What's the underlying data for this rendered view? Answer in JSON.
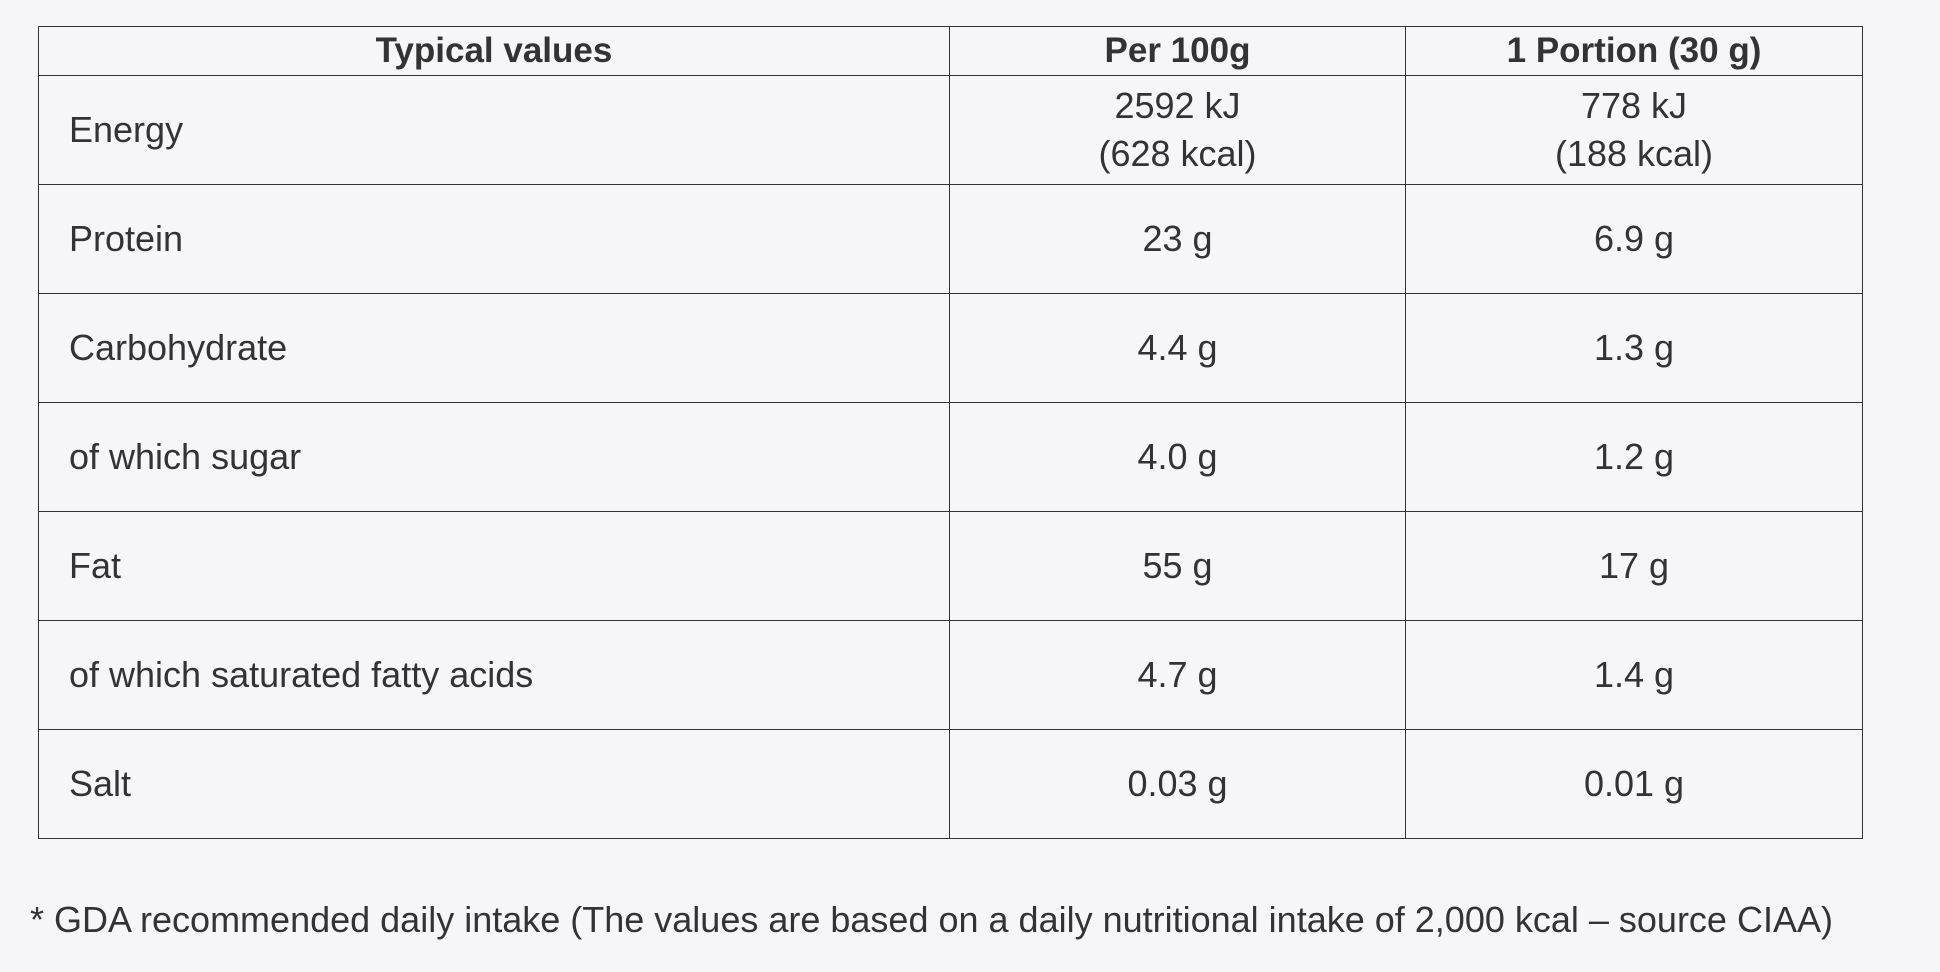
{
  "table": {
    "headers": [
      "Typical values",
      "Per 100g",
      "1 Portion (30 g)"
    ],
    "rows": [
      {
        "name": "Energy",
        "per100": [
          "2592 kJ",
          "(628 kcal)"
        ],
        "portion": [
          "778 kJ",
          "(188 kcal)"
        ]
      },
      {
        "name": "Protein",
        "per100": [
          "23 g"
        ],
        "portion": [
          "6.9 g"
        ]
      },
      {
        "name": "Carbohydrate",
        "per100": [
          "4.4 g"
        ],
        "portion": [
          "1.3 g"
        ]
      },
      {
        "name": "of which sugar",
        "per100": [
          "4.0 g"
        ],
        "portion": [
          "1.2 g"
        ]
      },
      {
        "name": "Fat",
        "per100": [
          "55 g"
        ],
        "portion": [
          "17 g"
        ]
      },
      {
        "name": "of which saturated fatty acids",
        "per100": [
          "4.7 g"
        ],
        "portion": [
          "1.4 g"
        ]
      },
      {
        "name": "Salt",
        "per100": [
          "0.03 g"
        ],
        "portion": [
          "0.01 g"
        ]
      }
    ]
  },
  "footnote": "* GDA recommended daily intake (The values are based on a daily nutritional intake of 2,000 kcal – source CIAA)"
}
